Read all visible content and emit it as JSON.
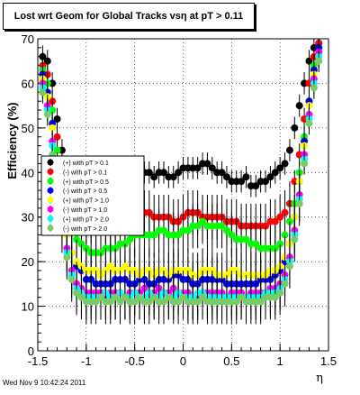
{
  "title": "Lost wrt Geom for Global Tracks vsη at pT > 0.11",
  "footer": "Wed Nov  9 10:42:24 2011",
  "chart_data": {
    "type": "scatter",
    "ylabel": "Efficiency (%)",
    "xlabel": "η",
    "xlim": [
      -1.5,
      1.5
    ],
    "ylim": [
      0,
      70
    ],
    "xticks": [
      "-1.5",
      "-1",
      "-0.5",
      "0",
      "0.5",
      "1",
      "1.5"
    ],
    "yticks": [
      "0",
      "10",
      "20",
      "30",
      "40",
      "50",
      "60",
      "70"
    ],
    "grid": true,
    "legend_position": "middle-left",
    "series": [
      {
        "name": "(+) with pT > 0.1",
        "color": "#000000",
        "x": [
          -1.45,
          -1.4,
          -1.35,
          -1.3,
          -1.25,
          -1.2,
          -1.15,
          -1.1,
          -1.05,
          -1.0,
          -0.95,
          -0.9,
          -0.85,
          -0.8,
          -0.75,
          -0.7,
          -0.65,
          -0.6,
          -0.55,
          -0.5,
          -0.45,
          -0.4,
          -0.35,
          -0.3,
          -0.25,
          -0.2,
          -0.15,
          -0.1,
          -0.05,
          0.0,
          0.05,
          0.1,
          0.15,
          0.2,
          0.25,
          0.3,
          0.35,
          0.4,
          0.45,
          0.5,
          0.55,
          0.6,
          0.65,
          0.7,
          0.75,
          0.8,
          0.85,
          0.9,
          0.95,
          1.0,
          1.05,
          1.1,
          1.15,
          1.2,
          1.25,
          1.3,
          1.35,
          1.4
        ],
        "y": [
          66,
          65,
          60,
          52,
          45,
          41,
          38,
          38,
          40,
          40,
          39,
          40,
          40,
          41,
          40,
          40,
          39,
          41,
          41,
          41,
          40,
          40,
          40,
          39,
          40,
          40,
          39,
          39,
          40,
          41,
          41,
          41,
          41,
          42,
          42,
          41,
          40,
          40,
          39,
          38,
          38,
          38,
          39,
          37,
          37,
          38,
          38,
          39,
          40,
          41,
          42,
          45,
          50,
          55,
          60,
          65,
          68,
          69
        ]
      },
      {
        "name": "(-) with pT > 0.1",
        "color": "#ff0000",
        "x": [
          -1.45,
          -1.4,
          -1.35,
          -1.3,
          -1.25,
          -1.2,
          -1.15,
          -1.1,
          -1.05,
          -1.0,
          -0.95,
          -0.9,
          -0.85,
          -0.8,
          -0.75,
          -0.7,
          -0.65,
          -0.6,
          -0.55,
          -0.5,
          -0.45,
          -0.4,
          -0.35,
          -0.3,
          -0.25,
          -0.2,
          -0.15,
          -0.1,
          -0.05,
          0.0,
          0.05,
          0.1,
          0.15,
          0.2,
          0.25,
          0.3,
          0.35,
          0.4,
          0.45,
          0.5,
          0.55,
          0.6,
          0.65,
          0.7,
          0.75,
          0.8,
          0.85,
          0.9,
          0.95,
          1.0,
          1.05,
          1.1,
          1.15,
          1.2,
          1.25,
          1.3,
          1.35,
          1.4
        ],
        "y": [
          64,
          62,
          56,
          48,
          42,
          36,
          32,
          30,
          29,
          29,
          29,
          28,
          29,
          29,
          29,
          29,
          29,
          30,
          30,
          31,
          30,
          31,
          31,
          30,
          30,
          30,
          30,
          29,
          29,
          30,
          31,
          31,
          31,
          30,
          30,
          30,
          30,
          30,
          29,
          29,
          29,
          28,
          28,
          28,
          28,
          28,
          28,
          29,
          29,
          30,
          31,
          33,
          38,
          44,
          52,
          60,
          66,
          69
        ]
      },
      {
        "name": "(+) with pT > 0.5",
        "color": "#00ff00",
        "x": [
          -1.45,
          -1.4,
          -1.35,
          -1.3,
          -1.25,
          -1.2,
          -1.15,
          -1.1,
          -1.05,
          -1.0,
          -0.95,
          -0.9,
          -0.85,
          -0.8,
          -0.75,
          -0.7,
          -0.65,
          -0.6,
          -0.55,
          -0.5,
          -0.45,
          -0.4,
          -0.35,
          -0.3,
          -0.25,
          -0.2,
          -0.15,
          -0.1,
          -0.05,
          0.0,
          0.05,
          0.1,
          0.15,
          0.2,
          0.25,
          0.3,
          0.35,
          0.4,
          0.45,
          0.5,
          0.55,
          0.6,
          0.65,
          0.7,
          0.75,
          0.8,
          0.85,
          0.9,
          0.95,
          1.0,
          1.05,
          1.1,
          1.15,
          1.2,
          1.25,
          1.3,
          1.35,
          1.4
        ],
        "y": [
          63,
          60,
          54,
          45,
          38,
          31,
          27,
          25,
          24,
          23,
          22,
          22,
          22,
          23,
          23,
          23,
          24,
          24,
          25,
          26,
          26,
          26,
          26,
          26,
          27,
          27,
          26,
          26,
          26,
          27,
          27,
          28,
          28,
          29,
          28,
          28,
          28,
          28,
          27,
          26,
          25,
          25,
          25,
          24,
          24,
          23,
          23,
          23,
          23,
          24,
          26,
          29,
          33,
          40,
          48,
          56,
          64,
          68
        ]
      },
      {
        "name": "(-) with pT > 0.5",
        "color": "#0000ff",
        "x": [
          -1.45,
          -1.4,
          -1.35,
          -1.3,
          -1.25,
          -1.2,
          -1.15,
          -1.1,
          -1.05,
          -1.0,
          -0.95,
          -0.9,
          -0.85,
          -0.8,
          -0.75,
          -0.7,
          -0.65,
          -0.6,
          -0.55,
          -0.5,
          -0.45,
          -0.4,
          -0.35,
          -0.3,
          -0.25,
          -0.2,
          -0.15,
          -0.1,
          -0.05,
          0.0,
          0.05,
          0.1,
          0.15,
          0.2,
          0.25,
          0.3,
          0.35,
          0.4,
          0.45,
          0.5,
          0.55,
          0.6,
          0.65,
          0.7,
          0.75,
          0.8,
          0.85,
          0.9,
          0.95,
          1.0,
          1.05,
          1.1,
          1.15,
          1.2,
          1.25,
          1.3,
          1.35,
          1.4
        ],
        "y": [
          62,
          58,
          51,
          42,
          34,
          27,
          22,
          19,
          18,
          16,
          16,
          15,
          15,
          15,
          15,
          16,
          16,
          16,
          15,
          15,
          16,
          16,
          15,
          15,
          16,
          16,
          16,
          17,
          17,
          16,
          16,
          15,
          15,
          16,
          16,
          16,
          16,
          16,
          15,
          15,
          15,
          15,
          15,
          15,
          15,
          16,
          16,
          16,
          17,
          18,
          20,
          24,
          30,
          38,
          47,
          56,
          63,
          68
        ]
      },
      {
        "name": "(+) with pT > 1.0",
        "color": "#ffff00",
        "x": [
          -1.45,
          -1.4,
          -1.35,
          -1.3,
          -1.25,
          -1.2,
          -1.15,
          -1.1,
          -1.05,
          -1.0,
          -0.95,
          -0.9,
          -0.85,
          -0.8,
          -0.75,
          -0.7,
          -0.65,
          -0.6,
          -0.55,
          -0.5,
          -0.45,
          -0.4,
          -0.35,
          -0.3,
          -0.25,
          -0.2,
          -0.15,
          -0.1,
          -0.05,
          0.0,
          0.05,
          0.1,
          0.15,
          0.2,
          0.25,
          0.3,
          0.35,
          0.4,
          0.45,
          0.5,
          0.55,
          0.6,
          0.65,
          0.7,
          0.75,
          0.8,
          0.85,
          0.9,
          0.95,
          1.0,
          1.05,
          1.1,
          1.15,
          1.2,
          1.25,
          1.3,
          1.35,
          1.4
        ],
        "y": [
          61,
          57,
          50,
          41,
          33,
          26,
          22,
          20,
          19,
          18,
          18,
          18,
          17,
          18,
          19,
          18,
          18,
          19,
          18,
          18,
          17,
          18,
          18,
          17,
          18,
          18,
          17,
          18,
          18,
          18,
          18,
          17,
          17,
          18,
          18,
          18,
          17,
          17,
          17,
          18,
          18,
          17,
          17,
          17,
          17,
          17,
          17,
          18,
          18,
          19,
          21,
          24,
          30,
          38,
          46,
          55,
          62,
          67
        ]
      },
      {
        "name": "(-) with pT > 1.0",
        "color": "#ff00ff",
        "x": [
          -1.45,
          -1.4,
          -1.35,
          -1.3,
          -1.25,
          -1.2,
          -1.15,
          -1.1,
          -1.05,
          -1.0,
          -0.95,
          -0.9,
          -0.85,
          -0.8,
          -0.75,
          -0.7,
          -0.65,
          -0.6,
          -0.55,
          -0.5,
          -0.45,
          -0.4,
          -0.35,
          -0.3,
          -0.25,
          -0.2,
          -0.15,
          -0.1,
          -0.05,
          0.0,
          0.05,
          0.1,
          0.15,
          0.2,
          0.25,
          0.3,
          0.35,
          0.4,
          0.45,
          0.5,
          0.55,
          0.6,
          0.65,
          0.7,
          0.75,
          0.8,
          0.85,
          0.9,
          0.95,
          1.0,
          1.05,
          1.1,
          1.15,
          1.2,
          1.25,
          1.3,
          1.35,
          1.4
        ],
        "y": [
          60,
          55,
          47,
          38,
          30,
          23,
          18,
          15,
          14,
          13,
          13,
          13,
          13,
          12,
          13,
          13,
          13,
          12,
          13,
          13,
          13,
          14,
          13,
          13,
          14,
          13,
          13,
          14,
          13,
          13,
          13,
          12,
          12,
          13,
          13,
          13,
          13,
          13,
          12,
          13,
          13,
          13,
          12,
          13,
          13,
          13,
          13,
          14,
          14,
          15,
          17,
          21,
          27,
          35,
          44,
          53,
          61,
          67
        ]
      },
      {
        "name": "(+) with pT > 2.0",
        "color": "#00ffff",
        "x": [
          -1.45,
          -1.4,
          -1.35,
          -1.3,
          -1.25,
          -1.2,
          -1.15,
          -1.1,
          -1.05,
          -1.0,
          -0.95,
          -0.9,
          -0.85,
          -0.8,
          -0.75,
          -0.7,
          -0.65,
          -0.6,
          -0.55,
          -0.5,
          -0.45,
          -0.4,
          -0.35,
          -0.3,
          -0.25,
          -0.2,
          -0.15,
          -0.1,
          -0.05,
          0.0,
          0.05,
          0.1,
          0.15,
          0.2,
          0.25,
          0.3,
          0.35,
          0.4,
          0.45,
          0.5,
          0.55,
          0.6,
          0.65,
          0.7,
          0.75,
          0.8,
          0.85,
          0.9,
          0.95,
          1.0,
          1.05,
          1.1,
          1.15,
          1.2,
          1.25,
          1.3,
          1.35,
          1.4
        ],
        "y": [
          59,
          54,
          46,
          37,
          28,
          22,
          17,
          14,
          13,
          12,
          12,
          12,
          12,
          13,
          12,
          12,
          13,
          12,
          12,
          13,
          12,
          12,
          13,
          12,
          12,
          13,
          12,
          12,
          13,
          12,
          12,
          12,
          13,
          13,
          12,
          12,
          12,
          12,
          12,
          12,
          12,
          12,
          12,
          12,
          12,
          12,
          13,
          13,
          13,
          14,
          16,
          20,
          26,
          34,
          43,
          52,
          60,
          66
        ]
      },
      {
        "name": "(-) with pT > 2.0",
        "color": "#77cc66",
        "x": [
          -1.45,
          -1.4,
          -1.35,
          -1.3,
          -1.25,
          -1.2,
          -1.15,
          -1.1,
          -1.05,
          -1.0,
          -0.95,
          -0.9,
          -0.85,
          -0.8,
          -0.75,
          -0.7,
          -0.65,
          -0.6,
          -0.55,
          -0.5,
          -0.45,
          -0.4,
          -0.35,
          -0.3,
          -0.25,
          -0.2,
          -0.15,
          -0.1,
          -0.05,
          0.0,
          0.05,
          0.1,
          0.15,
          0.2,
          0.25,
          0.3,
          0.35,
          0.4,
          0.45,
          0.5,
          0.55,
          0.6,
          0.65,
          0.7,
          0.75,
          0.8,
          0.85,
          0.9,
          0.95,
          1.0,
          1.05,
          1.1,
          1.15,
          1.2,
          1.25,
          1.3,
          1.35,
          1.4
        ],
        "y": [
          58,
          53,
          44,
          35,
          27,
          21,
          16,
          13,
          12,
          11,
          11,
          11,
          12,
          11,
          11,
          12,
          11,
          12,
          11,
          11,
          12,
          11,
          11,
          12,
          11,
          11,
          12,
          11,
          11,
          12,
          11,
          11,
          11,
          12,
          11,
          11,
          11,
          11,
          11,
          11,
          11,
          12,
          11,
          11,
          11,
          11,
          12,
          12,
          12,
          13,
          15,
          19,
          25,
          33,
          42,
          51,
          59,
          65
        ]
      }
    ]
  }
}
